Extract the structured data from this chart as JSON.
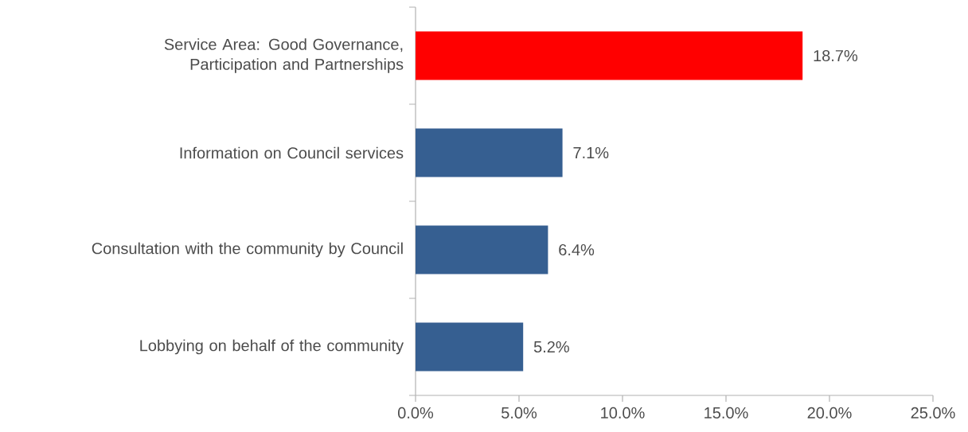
{
  "chart_data": {
    "type": "bar",
    "orientation": "horizontal",
    "categories": [
      "Service Area: Good Governance, Participation and Partnerships",
      "Information on Council services",
      "Consultation with the community by Council",
      "Lobbying on behalf of the community"
    ],
    "values": [
      18.7,
      7.1,
      6.4,
      5.2
    ],
    "colors": [
      "#ff0000",
      "#365f91",
      "#365f91",
      "#365f91"
    ],
    "value_labels": [
      "18.7%",
      "7.1%",
      "6.4%",
      "5.2%"
    ],
    "xlim": [
      0,
      25
    ],
    "xticks": [
      {
        "value": 0,
        "label": "0.0%"
      },
      {
        "value": 5,
        "label": "5.0%"
      },
      {
        "value": 10,
        "label": "10.0%"
      },
      {
        "value": 15,
        "label": "15.0%"
      },
      {
        "value": 20,
        "label": "20.0%"
      },
      {
        "value": 25,
        "label": "25.0%"
      }
    ]
  }
}
